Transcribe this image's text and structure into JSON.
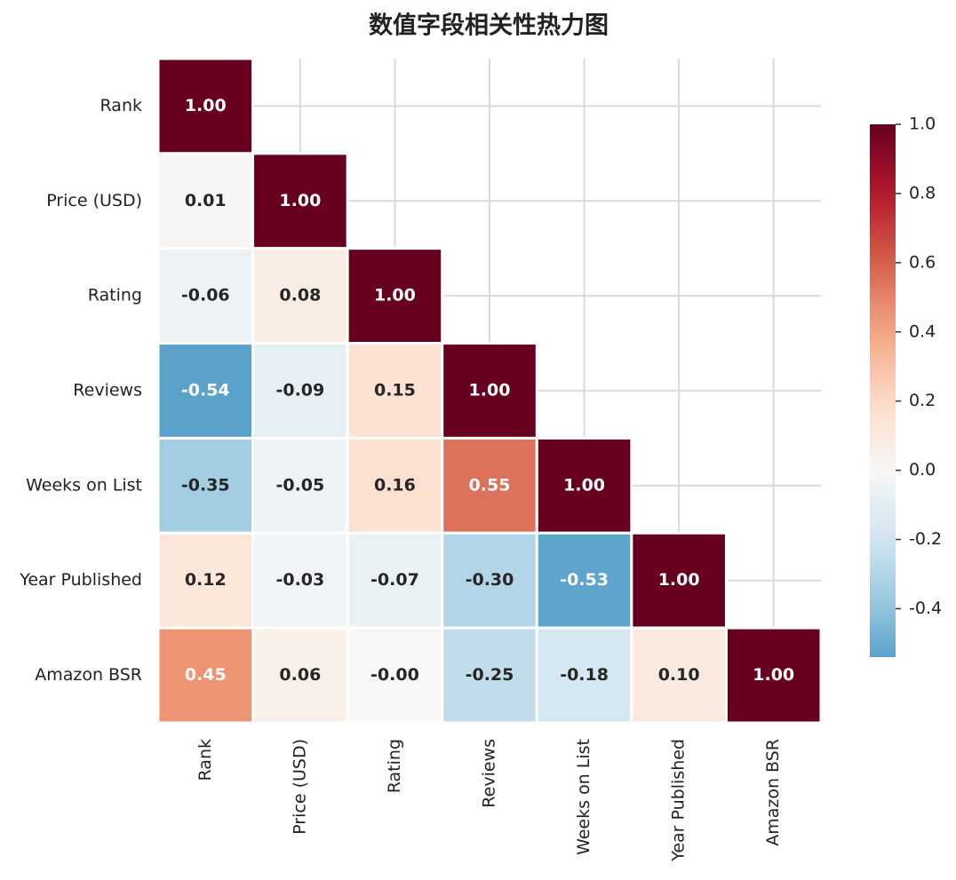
{
  "chart_data": {
    "type": "heatmap",
    "title": "数值字段相关性热力图",
    "categories": [
      "Rank",
      "Price (USD)",
      "Rating",
      "Reviews",
      "Weeks on List",
      "Year Published",
      "Amazon BSR"
    ],
    "values": [
      [
        1.0,
        null,
        null,
        null,
        null,
        null,
        null
      ],
      [
        0.01,
        1.0,
        null,
        null,
        null,
        null,
        null
      ],
      [
        -0.06,
        0.08,
        1.0,
        null,
        null,
        null,
        null
      ],
      [
        -0.54,
        -0.09,
        0.15,
        1.0,
        null,
        null,
        null
      ],
      [
        -0.35,
        -0.05,
        0.16,
        0.55,
        1.0,
        null,
        null
      ],
      [
        0.12,
        -0.03,
        -0.07,
        -0.3,
        -0.53,
        1.0,
        null
      ],
      [
        0.45,
        0.06,
        -0.0,
        -0.25,
        -0.18,
        0.1,
        1.0
      ]
    ],
    "value_labels": [
      [
        "1.00",
        null,
        null,
        null,
        null,
        null,
        null
      ],
      [
        "0.01",
        "1.00",
        null,
        null,
        null,
        null,
        null
      ],
      [
        "-0.06",
        "0.08",
        "1.00",
        null,
        null,
        null,
        null
      ],
      [
        "-0.54",
        "-0.09",
        "0.15",
        "1.00",
        null,
        null,
        null
      ],
      [
        "-0.35",
        "-0.05",
        "0.16",
        "0.55",
        "1.00",
        null,
        null
      ],
      [
        "0.12",
        "-0.03",
        "-0.07",
        "-0.30",
        "-0.53",
        "1.00",
        null
      ],
      [
        "0.45",
        "0.06",
        "-0.00",
        "-0.25",
        "-0.18",
        "0.10",
        "1.00"
      ]
    ],
    "cmap": "RdBu_r",
    "clim": [
      -0.54,
      1.0
    ],
    "cticks": [
      {
        "value": -0.4,
        "label": "-0.4"
      },
      {
        "value": -0.2,
        "label": "-0.2"
      },
      {
        "value": 0,
        "label": "0.0"
      },
      {
        "value": 0.2,
        "label": "0.2"
      },
      {
        "value": 0.4,
        "label": "0.4"
      },
      {
        "value": 0.6,
        "label": "0.6"
      },
      {
        "value": 0.8,
        "label": "0.8"
      },
      {
        "value": 1,
        "label": "1.0"
      }
    ],
    "grid": true
  }
}
